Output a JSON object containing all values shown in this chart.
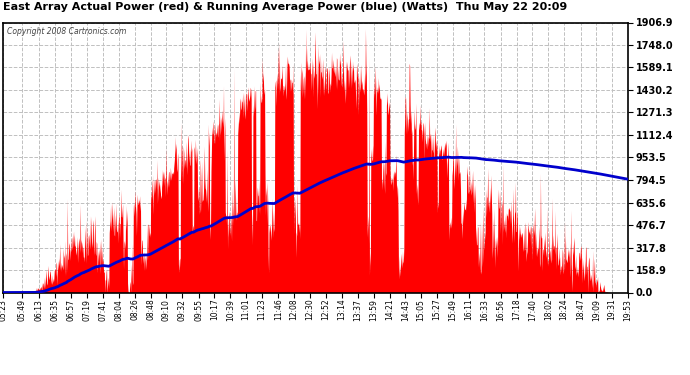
{
  "title": "East Array Actual Power (red) & Running Average Power (blue) (Watts)  Thu May 22 20:09",
  "copyright": "Copyright 2008 Cartronics.com",
  "y_max": 1906.9,
  "y_ticks": [
    0.0,
    158.9,
    317.8,
    476.7,
    635.6,
    794.5,
    953.5,
    1112.4,
    1271.3,
    1430.2,
    1589.1,
    1748.0,
    1906.9
  ],
  "x_labels": [
    "05:23",
    "05:49",
    "06:13",
    "06:35",
    "06:57",
    "07:19",
    "07:41",
    "08:04",
    "08:26",
    "08:48",
    "09:10",
    "09:32",
    "09:55",
    "10:17",
    "10:39",
    "11:01",
    "11:23",
    "11:46",
    "12:08",
    "12:30",
    "12:52",
    "13:14",
    "13:37",
    "13:59",
    "14:21",
    "14:43",
    "15:05",
    "15:27",
    "15:49",
    "16:11",
    "16:33",
    "16:56",
    "17:18",
    "17:40",
    "18:02",
    "18:24",
    "18:47",
    "19:09",
    "19:31",
    "19:53"
  ],
  "x_label_minutes": [
    323,
    349,
    373,
    395,
    417,
    439,
    461,
    484,
    506,
    528,
    550,
    572,
    595,
    617,
    639,
    661,
    683,
    706,
    728,
    750,
    772,
    794,
    817,
    839,
    861,
    883,
    905,
    927,
    949,
    971,
    993,
    1016,
    1038,
    1060,
    1082,
    1104,
    1127,
    1149,
    1171,
    1193
  ],
  "background_color": "#ffffff",
  "plot_bg_color": "#ffffff",
  "grid_color": "#c0c0c0",
  "red_color": "#ff0000",
  "blue_color": "#0000cc",
  "title_color": "#000000",
  "border_color": "#000000"
}
